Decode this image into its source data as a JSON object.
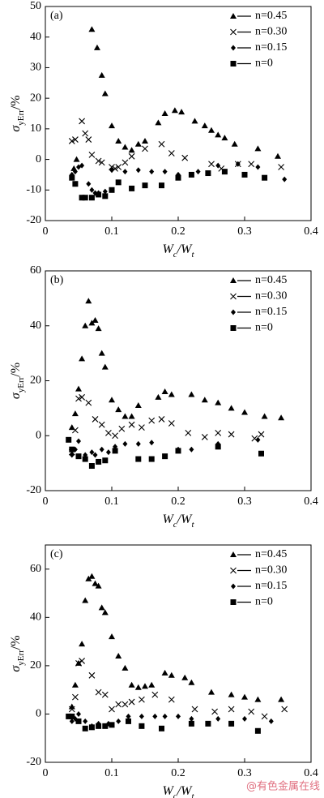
{
  "watermark": "@有色金属在线",
  "chart_data": [
    {
      "type": "scatter",
      "title": "(a)",
      "xlabel": [
        "W",
        "c",
        "/W",
        "t"
      ],
      "ylabel": [
        "σ",
        "yErr",
        "/%"
      ],
      "xlim": [
        0,
        0.4
      ],
      "xticks": [
        0,
        0.1,
        0.2,
        0.3,
        0.4
      ],
      "ylim": [
        -20,
        50
      ],
      "yticks": [
        -20,
        -10,
        0,
        10,
        20,
        30,
        40,
        50
      ],
      "legend": "upper right",
      "series": [
        {
          "name": "n=0.45",
          "color": "#000000",
          "marker": "triangle",
          "x": [
            0.043,
            0.047,
            0.07,
            0.078,
            0.085,
            0.09,
            0.1,
            0.11,
            0.12,
            0.13,
            0.14,
            0.15,
            0.17,
            0.18,
            0.195,
            0.205,
            0.225,
            0.24,
            0.25,
            0.26,
            0.27,
            0.285,
            0.32,
            0.35
          ],
          "values": [
            -3,
            0,
            42.5,
            36.5,
            27.5,
            21.5,
            11,
            6,
            4,
            3,
            5,
            6,
            12,
            15,
            16,
            15.5,
            12.5,
            11,
            9.5,
            8,
            7,
            5,
            3.5,
            1
          ]
        },
        {
          "name": "n=0.30",
          "color": "#000000",
          "marker": "cross",
          "x": [
            0.04,
            0.045,
            0.055,
            0.06,
            0.065,
            0.07,
            0.08,
            0.085,
            0.1,
            0.105,
            0.11,
            0.12,
            0.13,
            0.15,
            0.175,
            0.19,
            0.21,
            0.25,
            0.265,
            0.29,
            0.31,
            0.355
          ],
          "values": [
            6,
            6.5,
            12.5,
            8.5,
            6.5,
            1.5,
            -0.5,
            -1,
            -2.5,
            -3,
            -2.5,
            -1,
            1,
            3.5,
            5,
            2,
            0.5,
            -1.5,
            -3,
            -1.5,
            -1.5,
            -2.5
          ]
        },
        {
          "name": "n=0.15",
          "color": "#000000",
          "marker": "diamond",
          "x": [
            0.04,
            0.045,
            0.05,
            0.055,
            0.065,
            0.07,
            0.075,
            0.08,
            0.09,
            0.1,
            0.12,
            0.14,
            0.16,
            0.18,
            0.2,
            0.23,
            0.26,
            0.29,
            0.32,
            0.36
          ],
          "values": [
            -5,
            -4,
            -2.5,
            -2,
            -8,
            -10,
            -11,
            -11,
            -10.5,
            -3.5,
            -4,
            -3.5,
            -4,
            -4,
            -5,
            -4,
            -2,
            -1.5,
            -2.5,
            -6.5
          ]
        },
        {
          "name": "n=0",
          "color": "#000000",
          "marker": "square",
          "x": [
            0.04,
            0.045,
            0.055,
            0.06,
            0.07,
            0.08,
            0.09,
            0.1,
            0.11,
            0.13,
            0.15,
            0.175,
            0.2,
            0.22,
            0.245,
            0.27,
            0.3,
            0.33
          ],
          "values": [
            -6,
            -8,
            -12.5,
            -12.5,
            -12.5,
            -11.5,
            -12,
            -10,
            -7.5,
            -9.5,
            -8.5,
            -8.5,
            -6,
            -5,
            -4.5,
            -4,
            -5,
            -6
          ]
        }
      ]
    },
    {
      "type": "scatter",
      "title": "(b)",
      "xlabel": [
        "W",
        "c",
        "/W",
        "t"
      ],
      "ylabel": [
        "σ",
        "yErr",
        "/%"
      ],
      "xlim": [
        0,
        0.4
      ],
      "xticks": [
        0,
        0.1,
        0.2,
        0.3,
        0.4
      ],
      "ylim": [
        -20,
        60
      ],
      "yticks": [
        -20,
        0,
        20,
        40,
        60
      ],
      "legend": "upper right",
      "series": [
        {
          "name": "n=0.45",
          "color": "#000000",
          "marker": "triangle",
          "x": [
            0.04,
            0.045,
            0.05,
            0.055,
            0.06,
            0.065,
            0.07,
            0.075,
            0.08,
            0.085,
            0.09,
            0.1,
            0.11,
            0.12,
            0.13,
            0.14,
            0.17,
            0.18,
            0.19,
            0.22,
            0.24,
            0.26,
            0.28,
            0.3,
            0.33,
            0.355
          ],
          "values": [
            3,
            8,
            17,
            28,
            40,
            49,
            41,
            42,
            39,
            30,
            25,
            13,
            9.5,
            7,
            7,
            11,
            14,
            16,
            15,
            15,
            13,
            12,
            10,
            8.5,
            7,
            6.5
          ]
        },
        {
          "name": "n=0.30",
          "color": "#000000",
          "marker": "cross",
          "x": [
            0.04,
            0.045,
            0.05,
            0.055,
            0.065,
            0.075,
            0.085,
            0.095,
            0.105,
            0.115,
            0.13,
            0.145,
            0.16,
            0.175,
            0.19,
            0.215,
            0.24,
            0.26,
            0.28,
            0.315,
            0.325
          ],
          "values": [
            -6,
            2,
            13.5,
            14,
            12,
            6,
            4,
            1,
            0,
            2.5,
            4,
            3,
            5.5,
            6,
            4.5,
            1,
            -0.5,
            1,
            0.5,
            -1,
            0.5
          ]
        },
        {
          "name": "n=0.15",
          "color": "#000000",
          "marker": "diamond",
          "x": [
            0.04,
            0.045,
            0.05,
            0.06,
            0.07,
            0.075,
            0.085,
            0.095,
            0.105,
            0.12,
            0.14,
            0.16,
            0.2,
            0.22,
            0.26,
            0.32
          ],
          "values": [
            -7,
            -5,
            -2,
            -7,
            -6,
            -7,
            -5,
            -6,
            -4,
            -3,
            -3,
            -2.5,
            -5,
            -5,
            -3,
            -1.5
          ]
        },
        {
          "name": "n=0",
          "color": "#000000",
          "marker": "square",
          "x": [
            0.035,
            0.04,
            0.05,
            0.06,
            0.07,
            0.08,
            0.09,
            0.105,
            0.14,
            0.16,
            0.18,
            0.2,
            0.26,
            0.325
          ],
          "values": [
            -1.5,
            -5,
            -7.5,
            -8.5,
            -11,
            -9.5,
            -9,
            -5.5,
            -8.5,
            -8.5,
            -7.5,
            -5.5,
            -4,
            -6.5
          ]
        }
      ]
    },
    {
      "type": "scatter",
      "title": "(c)",
      "xlabel": [
        "W",
        "c",
        "/W",
        "t"
      ],
      "ylabel": [
        "σ",
        "yErr",
        "/%"
      ],
      "xlim": [
        0,
        0.4
      ],
      "xticks": [
        0,
        0.1,
        0.2,
        0.3,
        0.4
      ],
      "ylim": [
        -20,
        70
      ],
      "yticks": [
        -20,
        0,
        20,
        40,
        60
      ],
      "legend": "upper right",
      "series": [
        {
          "name": "n=0.45",
          "color": "#000000",
          "marker": "triangle",
          "x": [
            0.04,
            0.045,
            0.05,
            0.055,
            0.06,
            0.065,
            0.07,
            0.075,
            0.08,
            0.085,
            0.09,
            0.1,
            0.11,
            0.12,
            0.13,
            0.14,
            0.15,
            0.16,
            0.18,
            0.19,
            0.21,
            0.22,
            0.25,
            0.28,
            0.3,
            0.32,
            0.355
          ],
          "values": [
            3,
            12,
            21,
            29,
            47,
            56,
            57,
            54,
            53,
            44,
            42,
            32,
            24,
            19,
            12,
            11,
            11.5,
            12,
            17,
            16,
            15,
            13,
            9,
            8,
            7,
            6,
            6
          ]
        },
        {
          "name": "n=0.30",
          "color": "#000000",
          "marker": "cross",
          "x": [
            0.04,
            0.045,
            0.05,
            0.055,
            0.07,
            0.08,
            0.09,
            0.1,
            0.11,
            0.12,
            0.13,
            0.145,
            0.165,
            0.19,
            0.225,
            0.255,
            0.28,
            0.31,
            0.33,
            0.36
          ],
          "values": [
            2,
            7,
            21,
            22,
            16,
            9,
            8,
            2,
            4,
            4,
            5,
            6,
            8,
            6,
            2,
            1,
            2,
            1,
            -1,
            2
          ]
        },
        {
          "name": "n=0.15",
          "color": "#000000",
          "marker": "diamond",
          "x": [
            0.04,
            0.045,
            0.05,
            0.06,
            0.07,
            0.08,
            0.095,
            0.11,
            0.125,
            0.145,
            0.165,
            0.18,
            0.2,
            0.22,
            0.26,
            0.3,
            0.34
          ],
          "values": [
            -3,
            -2,
            0,
            -3,
            -5,
            -4,
            -4,
            -3,
            -1,
            -1,
            -1,
            -1,
            -1,
            -2,
            -2,
            -2,
            -3
          ]
        },
        {
          "name": "n=0",
          "color": "#000000",
          "marker": "square",
          "x": [
            0.035,
            0.04,
            0.05,
            0.06,
            0.07,
            0.08,
            0.09,
            0.1,
            0.125,
            0.145,
            0.175,
            0.22,
            0.245,
            0.28,
            0.32
          ],
          "values": [
            -1,
            -1,
            -3,
            -6,
            -5.5,
            -5,
            -5,
            -4.5,
            -3,
            -5,
            -6,
            -4,
            -4,
            -4,
            -7
          ]
        }
      ]
    }
  ]
}
